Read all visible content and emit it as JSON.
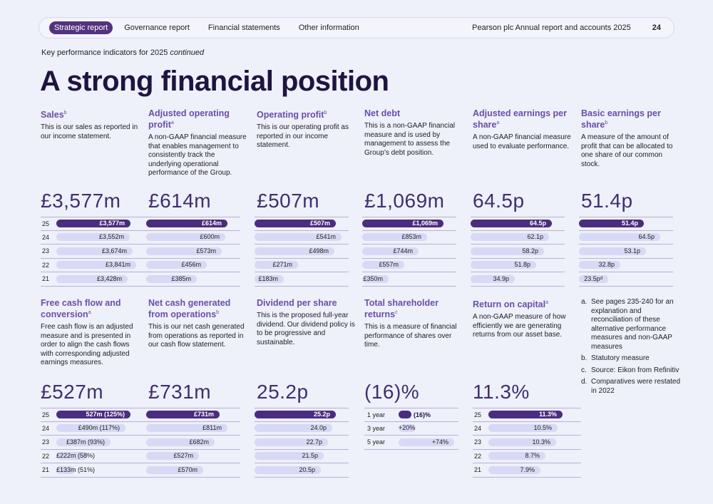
{
  "nav": {
    "active": "Strategic report",
    "links": [
      "Governance report",
      "Financial statements",
      "Other information"
    ],
    "report_title": "Pearson plc Annual report and accounts 2025",
    "page_number": "24"
  },
  "subtitle": "Key performance indicators for 2025",
  "subtitle_italic": "continued",
  "headline": "A strong financial position",
  "kpis_top": [
    {
      "title": "Sales",
      "sup": "b",
      "desc": "This is our sales as reported in our income statement.",
      "big": "£3,577m",
      "rows": [
        {
          "y": "25",
          "label": "£3,577m",
          "v": 1.0
        },
        {
          "y": "24",
          "label": "£3,552m",
          "v": 0.993
        },
        {
          "y": "23",
          "label": "£3,674m",
          "v": 1.027
        },
        {
          "y": "22",
          "label": "£3,841m",
          "v": 1.074
        },
        {
          "y": "21",
          "label": "£3,428m",
          "v": 0.958
        }
      ]
    },
    {
      "title": "Adjusted operating profit",
      "sup": "a",
      "desc": "A non-GAAP financial measure that enables management to consistently track the underlying operational performance of the Group.",
      "big": "£614m",
      "rows": [
        {
          "y": "",
          "label": "£614m",
          "v": 1.0
        },
        {
          "y": "",
          "label": "£600m",
          "v": 0.977
        },
        {
          "y": "",
          "label": "£573m",
          "v": 0.933
        },
        {
          "y": "",
          "label": "£456m",
          "v": 0.743
        },
        {
          "y": "",
          "label": "£385m",
          "v": 0.627
        }
      ]
    },
    {
      "title": "Operating profit",
      "sup": "b",
      "desc": "This is our operating profit as reported in our income statement.",
      "big": "£507m",
      "rows": [
        {
          "y": "",
          "label": "£507m",
          "v": 1.0
        },
        {
          "y": "",
          "label": "£541m",
          "v": 1.067
        },
        {
          "y": "",
          "label": "£498m",
          "v": 0.982
        },
        {
          "y": "",
          "label": "£271m",
          "v": 0.535
        },
        {
          "y": "",
          "label": "£183m",
          "v": 0.361
        }
      ]
    },
    {
      "title": "Net debt",
      "sup": "",
      "desc": "This is a non-GAAP financial measure and is used by management to assess the Group’s debt position.",
      "big": "£1,069m",
      "rows": [
        {
          "y": "",
          "label": "£1,069m",
          "v": 1.0
        },
        {
          "y": "",
          "label": "£853m",
          "v": 0.798
        },
        {
          "y": "",
          "label": "£744m",
          "v": 0.696
        },
        {
          "y": "",
          "label": "£557m",
          "v": 0.521
        },
        {
          "y": "",
          "label": "£350m",
          "v": 0.327
        }
      ]
    },
    {
      "title": "Adjusted earnings per share",
      "sup": "a",
      "desc": "A non-GAAP financial measure used to evaluate performance.",
      "big": "64.5p",
      "rows": [
        {
          "y": "",
          "label": "64.5p",
          "v": 1.0
        },
        {
          "y": "",
          "label": "62.1p",
          "v": 0.963
        },
        {
          "y": "",
          "label": "58.2p",
          "v": 0.902
        },
        {
          "y": "",
          "label": "51.8p",
          "v": 0.803
        },
        {
          "y": "",
          "label": "34.9p",
          "v": 0.541
        }
      ]
    },
    {
      "title": "Basic earnings per share",
      "sup": "b",
      "desc": "A measure of the amount of profit that can be allocated to one share of our common stock.",
      "big": "51.4p",
      "rows": [
        {
          "y": "",
          "label": "51.4p",
          "v": 0.8
        },
        {
          "y": "",
          "label": "64.5p",
          "v": 1.0
        },
        {
          "y": "",
          "label": "53.1p",
          "v": 0.823
        },
        {
          "y": "",
          "label": "32.8p",
          "v": 0.508
        },
        {
          "y": "",
          "label": "23.5pᵈ",
          "v": 0.364
        }
      ]
    }
  ],
  "kpis_bottom": [
    {
      "title": "Free cash flow and conversion",
      "sup": "a",
      "desc": "Free cash flow is an adjusted measure and is presented in order to align the cash flows with corresponding adjusted earnings measures.",
      "big": "£527m",
      "rows": [
        {
          "y": "25",
          "label": "527m (125%)",
          "v": 1.0
        },
        {
          "y": "24",
          "label": "£490m (117%)",
          "v": 0.93
        },
        {
          "y": "23",
          "label": "£387m (93%)",
          "v": 0.73
        },
        {
          "y": "22",
          "label": "£222m (58%)",
          "v": 0.42
        },
        {
          "y": "21",
          "label": "£133m (51%)",
          "v": 0.25
        }
      ]
    },
    {
      "title": "Net cash generated from operations",
      "sup": "b",
      "desc": "This is our net cash generated from operations as reported in our cash flow statement.",
      "big": "£731m",
      "rows": [
        {
          "y": "",
          "label": "£731m",
          "v": 0.9
        },
        {
          "y": "",
          "label": "£811m",
          "v": 1.0
        },
        {
          "y": "",
          "label": "£682m",
          "v": 0.84
        },
        {
          "y": "",
          "label": "£527m",
          "v": 0.65
        },
        {
          "y": "",
          "label": "£570m",
          "v": 0.7
        }
      ]
    },
    {
      "title": "Dividend per share",
      "sup": "",
      "desc": "This is the proposed full-year dividend. Our dividend policy is to be progressive and sustainable.",
      "big": "25.2p",
      "rows": [
        {
          "y": "",
          "label": "25.2p",
          "v": 1.0
        },
        {
          "y": "",
          "label": "24.0p",
          "v": 0.952
        },
        {
          "y": "",
          "label": "22.7p",
          "v": 0.901
        },
        {
          "y": "",
          "label": "21.5p",
          "v": 0.853
        },
        {
          "y": "",
          "label": "20.5p",
          "v": 0.813
        }
      ]
    },
    {
      "title": "Total shareholder returns",
      "sup": "c",
      "desc": "This is a measure of financial performance of shares over time.",
      "big": "(16)%",
      "rows": [
        {
          "y": "1 year",
          "label": "(16)%",
          "v": 0.22
        },
        {
          "y": "3 year",
          "label": "+20%",
          "v": 0.27
        },
        {
          "y": "5 year",
          "label": "+74%",
          "v": 1.0
        }
      ]
    },
    {
      "title": "Return on capital",
      "sup": "a",
      "desc": "A non-GAAP measure of how efficiently we are generating returns from our asset base.",
      "big": "11.3%",
      "rows": [
        {
          "y": "25",
          "label": "11.3%",
          "v": 1.0
        },
        {
          "y": "24",
          "label": "10.5%",
          "v": 0.93
        },
        {
          "y": "23",
          "label": "10.3%",
          "v": 0.91
        },
        {
          "y": "22",
          "label": "8.7%",
          "v": 0.77
        },
        {
          "y": "21",
          "label": "7.9%",
          "v": 0.7
        }
      ]
    }
  ],
  "notes": [
    {
      "k": "a.",
      "t": "See pages 235-240 for an explanation and reconciliation of these alternative performance measures and non-GAAP measures"
    },
    {
      "k": "b.",
      "t": "Statutory measure"
    },
    {
      "k": "c.",
      "t": "Source: Eikon from Refinitiv"
    },
    {
      "k": "d.",
      "t": "Comparatives were restated in 2022"
    }
  ]
}
